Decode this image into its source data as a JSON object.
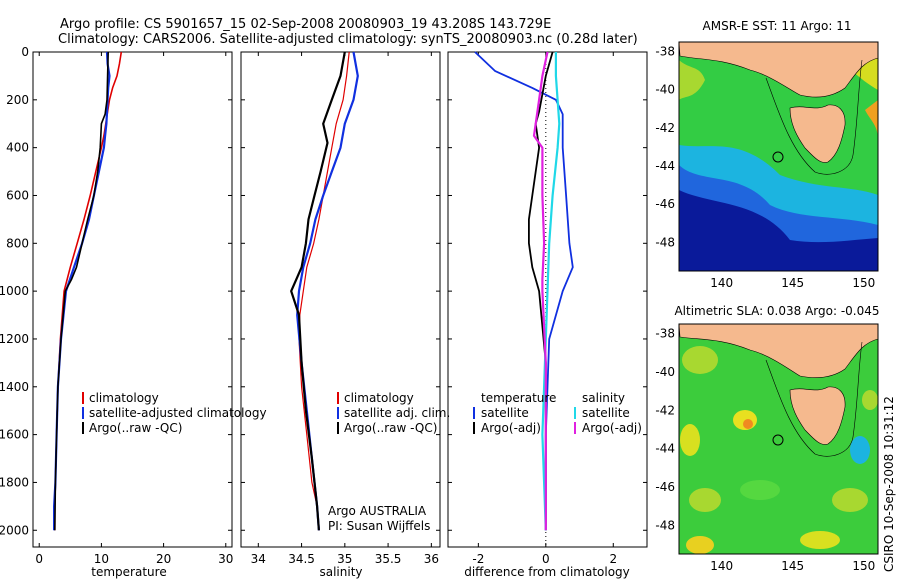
{
  "header": {
    "line1": "Argo profile: CS 5901657_15 02-Sep-2008 20080903_19 43.208S 143.729E",
    "line2": "Climatology: CARS2006. Satellite-adjusted climatology: synTS_20080903.nc (0.28d later)"
  },
  "side_label": "CSIRO 10-Sep-2008 10:31:12",
  "colors": {
    "clim": "#e00000",
    "sat": "#1030e0",
    "argo": "#000000",
    "cyan": "#20d8e8",
    "magenta": "#e020e0",
    "land": "#f5b98e"
  },
  "chart_data": [
    {
      "type": "line",
      "id": "temperature",
      "xlabel": "temperature",
      "xlim": [
        -1,
        31
      ],
      "ylim": [
        0,
        2070
      ],
      "xticks": [
        0,
        10,
        20,
        30
      ],
      "yticks": [
        0,
        200,
        400,
        600,
        800,
        1000,
        1200,
        1400,
        1600,
        1800,
        2000
      ],
      "legend": [
        "climatology",
        "satellite-adjusted climatology",
        "Argo(..raw -QC)"
      ],
      "series": [
        {
          "name": "climatology",
          "color": "clim",
          "x": [
            13.2,
            12.9,
            12.5,
            11.8,
            11.3,
            11.0,
            10.7,
            10.4,
            10.0,
            9.1,
            8.2,
            7.2,
            6.1,
            5.0,
            4.0,
            3.4,
            3.0,
            2.8,
            2.6,
            2.5,
            2.5
          ],
          "y": [
            0,
            50,
            100,
            150,
            200,
            250,
            300,
            350,
            400,
            500,
            600,
            700,
            800,
            900,
            1000,
            1200,
            1400,
            1600,
            1800,
            1900,
            2000
          ]
        },
        {
          "name": "satellite-adjusted climatology",
          "color": "sat",
          "x": [
            10.9,
            11.0,
            11.3,
            11.1,
            11.0,
            10.9,
            10.8,
            10.6,
            10.4,
            9.6,
            8.8,
            8.0,
            6.9,
            5.6,
            4.3,
            3.5,
            3.0,
            2.8,
            2.6,
            2.4,
            2.4
          ],
          "y": [
            0,
            50,
            100,
            150,
            200,
            250,
            300,
            350,
            400,
            500,
            600,
            700,
            800,
            900,
            1000,
            1200,
            1400,
            1600,
            1800,
            1900,
            2000
          ]
        },
        {
          "name": "Argo(..raw -QC)",
          "color": "argo",
          "x": [
            11.1,
            11.0,
            10.9,
            10.6,
            10.0,
            9.8,
            9.4,
            8.8,
            7.8,
            6.9,
            6.0,
            5.2,
            4.2,
            3.5,
            3.0,
            2.8,
            2.6,
            2.5
          ],
          "y": [
            0,
            100,
            200,
            260,
            300,
            400,
            500,
            600,
            700,
            800,
            900,
            950,
            1000,
            1200,
            1400,
            1600,
            1800,
            2000
          ]
        }
      ]
    },
    {
      "type": "line",
      "id": "salinity",
      "xlabel": "salinity",
      "xlim": [
        33.8,
        36.1
      ],
      "ylim": [
        0,
        2070
      ],
      "xticks": [
        34,
        34.5,
        35,
        35.5,
        36
      ],
      "yticks": [
        0,
        200,
        400,
        600,
        800,
        1000,
        1200,
        1400,
        1600,
        1800,
        2000
      ],
      "legend": [
        "climatology",
        "satellite adj. clim.",
        "Argo(..raw -QC)"
      ],
      "annotation": [
        "Argo AUSTRALIA",
        "PI: Susan Wijffels"
      ],
      "series": [
        {
          "name": "climatology",
          "color": "clim",
          "x": [
            35.05,
            35.02,
            34.98,
            34.9,
            34.85,
            34.8,
            34.75,
            34.7,
            34.64,
            34.56,
            34.52,
            34.48,
            34.47,
            34.5,
            34.56,
            34.62,
            34.68,
            34.7
          ],
          "y": [
            0,
            100,
            200,
            300,
            400,
            500,
            600,
            700,
            800,
            900,
            1000,
            1100,
            1200,
            1400,
            1600,
            1800,
            1900,
            2000
          ]
        },
        {
          "name": "satellite adj. clim.",
          "color": "sat",
          "x": [
            35.1,
            35.15,
            35.1,
            35.0,
            34.95,
            34.85,
            34.75,
            34.66,
            34.6,
            34.52,
            34.47,
            34.45,
            34.5,
            34.56,
            34.62,
            34.68,
            34.7
          ],
          "y": [
            0,
            100,
            200,
            300,
            400,
            500,
            600,
            700,
            800,
            900,
            1000,
            1100,
            1300,
            1500,
            1700,
            1900,
            2000
          ]
        },
        {
          "name": "Argo(..raw -QC)",
          "color": "argo",
          "x": [
            35.0,
            34.95,
            34.85,
            34.75,
            34.8,
            34.72,
            34.65,
            34.58,
            34.55,
            34.5,
            34.44,
            34.38,
            34.47,
            34.5,
            34.55,
            34.62,
            34.68,
            34.7
          ],
          "y": [
            0,
            100,
            200,
            300,
            380,
            500,
            600,
            700,
            800,
            900,
            950,
            1000,
            1100,
            1300,
            1500,
            1700,
            1900,
            2000
          ]
        }
      ]
    },
    {
      "type": "line",
      "id": "difference",
      "xlabel": "difference from climatology",
      "xlim": [
        -2.9,
        3.0
      ],
      "ylim": [
        0,
        2070
      ],
      "xticks": [
        -2,
        0,
        2
      ],
      "yticks": [
        0,
        200,
        400,
        600,
        800,
        1000,
        1200,
        1400,
        1600,
        1800,
        2000
      ],
      "legend": [
        "temperature",
        "satellite",
        "Argo(-adj)",
        "salinity",
        "satellite",
        "Argo(-adj)"
      ],
      "series": [
        {
          "name": "temperature satellite",
          "color": "sat",
          "x": [
            -2.1,
            -1.5,
            -0.4,
            0.3,
            0.5,
            0.5,
            0.6,
            0.7,
            0.8,
            0.5,
            0.1,
            0,
            0
          ],
          "y": [
            0,
            80,
            150,
            200,
            260,
            400,
            600,
            800,
            900,
            1000,
            1200,
            1600,
            2000
          ]
        },
        {
          "name": "temperature Argo(-adj)",
          "color": "argo",
          "x": [
            0.2,
            0,
            -0.2,
            -0.3,
            -0.2,
            -0.4,
            -0.5,
            -0.5,
            -0.4,
            -0.2,
            0,
            0
          ],
          "y": [
            0,
            100,
            250,
            300,
            400,
            600,
            700,
            800,
            900,
            1000,
            1300,
            2000
          ]
        },
        {
          "name": "salinity satellite",
          "color": "cyan",
          "x": [
            0.3,
            0.3,
            0.35,
            0.4,
            0.35,
            0.2,
            0.1,
            0.05,
            0,
            -0.1,
            -0.05,
            0
          ],
          "y": [
            0,
            100,
            200,
            300,
            400,
            600,
            800,
            1000,
            1200,
            1600,
            1800,
            2000
          ]
        },
        {
          "name": "salinity Argo(-adj)",
          "color": "magenta",
          "x": [
            0.05,
            -0.1,
            -0.2,
            -0.35,
            -0.1,
            -0.1,
            -0.05,
            -0.1,
            -0.1,
            0,
            0
          ],
          "y": [
            0,
            100,
            200,
            350,
            400,
            600,
            800,
            950,
            1000,
            1300,
            2000
          ]
        }
      ]
    },
    {
      "type": "heatmap",
      "id": "sst-map",
      "title": "AMSR-E SST: 11 Argo: 11",
      "xlim": [
        137,
        151
      ],
      "ylim": [
        -49.5,
        -37.5
      ],
      "xticks": [
        140,
        145,
        150
      ],
      "yticks": [
        -38,
        -40,
        -42,
        -44,
        -46,
        -48
      ],
      "float": [
        143.73,
        -43.21
      ]
    },
    {
      "type": "heatmap",
      "id": "sla-map",
      "title": "Altimetric SLA: 0.038 Argo: -0.045",
      "xlim": [
        137,
        151
      ],
      "ylim": [
        -49.5,
        -37.5
      ],
      "xticks": [
        140,
        145,
        150
      ],
      "yticks": [
        -38,
        -40,
        -42,
        -44,
        -46,
        -48
      ],
      "float": [
        143.73,
        -43.21
      ]
    }
  ]
}
